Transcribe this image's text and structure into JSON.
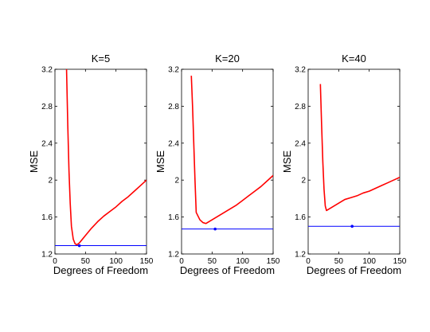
{
  "chart_data": [
    {
      "type": "line",
      "title": "K=5",
      "xlabel": "Degrees of Freedom",
      "ylabel": "MSE",
      "xlim": [
        0,
        150
      ],
      "ylim": [
        1.2,
        3.2
      ],
      "x_ticks": [
        0,
        50,
        100,
        150
      ],
      "x_tick_labels": [
        "0",
        "50",
        "100",
        "150"
      ],
      "y_ticks": [
        1.2,
        1.6,
        2.0,
        2.4,
        2.8,
        3.2
      ],
      "y_tick_labels": [
        "1.2",
        "1.6",
        "2",
        "2.4",
        "2.8",
        "3.2"
      ],
      "grid": false,
      "series": [
        {
          "color": "#ff0000",
          "x": [
            19,
            21,
            23,
            25,
            27,
            30,
            33,
            36,
            40,
            45,
            50,
            55,
            60,
            70,
            80,
            90,
            100,
            110,
            120,
            130,
            140,
            150
          ],
          "y": [
            3.2,
            2.6,
            2.1,
            1.75,
            1.5,
            1.36,
            1.31,
            1.3,
            1.32,
            1.36,
            1.4,
            1.44,
            1.48,
            1.55,
            1.61,
            1.66,
            1.71,
            1.77,
            1.82,
            1.88,
            1.94,
            2.0
          ]
        }
      ],
      "reference_line": {
        "y": 1.29,
        "color": "#0000ff"
      },
      "marker": {
        "x": 40,
        "y": 1.29,
        "color": "#0000ff"
      }
    },
    {
      "type": "line",
      "title": "K=20",
      "xlabel": "Degrees of Freedom",
      "ylabel": "MSE",
      "xlim": [
        0,
        150
      ],
      "ylim": [
        1.2,
        3.2
      ],
      "x_ticks": [
        0,
        50,
        100,
        150
      ],
      "x_tick_labels": [
        "0",
        "50",
        "100",
        "150"
      ],
      "y_ticks": [
        1.2,
        1.6,
        2.0,
        2.4,
        2.8,
        3.2
      ],
      "y_tick_labels": [
        "1.2",
        "1.6",
        "2",
        "2.4",
        "2.8",
        "3.2"
      ],
      "grid": false,
      "series": [
        {
          "color": "#ff0000",
          "x": [
            16,
            18,
            20,
            22,
            24,
            27,
            30,
            35,
            40,
            50,
            60,
            70,
            80,
            90,
            100,
            110,
            120,
            130,
            140,
            150
          ],
          "y": [
            3.13,
            2.8,
            2.4,
            2.0,
            1.65,
            1.61,
            1.57,
            1.54,
            1.53,
            1.57,
            1.61,
            1.65,
            1.69,
            1.73,
            1.78,
            1.83,
            1.88,
            1.93,
            1.99,
            2.05
          ]
        }
      ],
      "reference_line": {
        "y": 1.47,
        "color": "#0000ff"
      },
      "marker": {
        "x": 55,
        "y": 1.47,
        "color": "#0000ff"
      }
    },
    {
      "type": "line",
      "title": "K=40",
      "xlabel": "Degrees of Freedom",
      "ylabel": "MSE",
      "xlim": [
        0,
        150
      ],
      "ylim": [
        1.2,
        3.2
      ],
      "x_ticks": [
        0,
        50,
        100,
        150
      ],
      "x_tick_labels": [
        "0",
        "50",
        "100",
        "150"
      ],
      "y_ticks": [
        1.2,
        1.6,
        2.0,
        2.4,
        2.8,
        3.2
      ],
      "y_tick_labels": [
        "1.2",
        "1.6",
        "2",
        "2.4",
        "2.8",
        "3.2"
      ],
      "grid": false,
      "series": [
        {
          "color": "#ff0000",
          "x": [
            20,
            22,
            24,
            26,
            28,
            30,
            40,
            50,
            60,
            70,
            80,
            90,
            100,
            110,
            120,
            130,
            140,
            150
          ],
          "y": [
            3.04,
            2.6,
            2.2,
            1.9,
            1.72,
            1.67,
            1.71,
            1.75,
            1.79,
            1.81,
            1.83,
            1.86,
            1.88,
            1.91,
            1.94,
            1.97,
            2.0,
            2.03
          ]
        }
      ],
      "reference_line": {
        "y": 1.5,
        "color": "#0000ff"
      },
      "marker": {
        "x": 72,
        "y": 1.5,
        "color": "#0000ff"
      }
    }
  ]
}
